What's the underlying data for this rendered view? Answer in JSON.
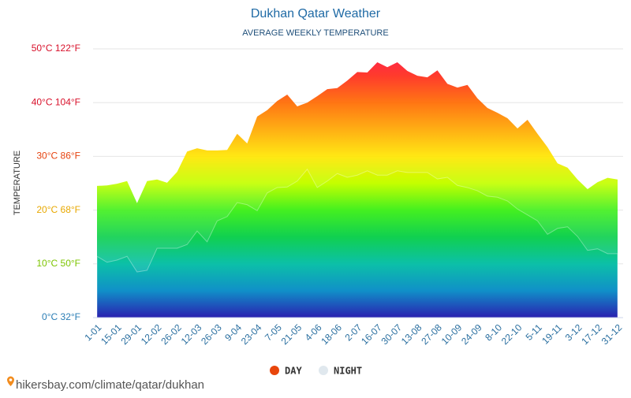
{
  "chart_data": {
    "type": "area",
    "title": "Dukhan Qatar Weather",
    "subtitle": "AVERAGE WEEKLY TEMPERATURE",
    "y_axis_label": "TEMPERATURE",
    "source": "hikersbay.com/climate/qatar/dukhan",
    "categories": [
      "1-01",
      null,
      "15-01",
      null,
      "29-01",
      null,
      "12-02",
      null,
      "26-02",
      null,
      "12-03",
      null,
      "26-03",
      null,
      "9-04",
      null,
      "23-04",
      null,
      "7-05",
      null,
      "21-05",
      null,
      "4-06",
      null,
      "18-06",
      null,
      "2-07",
      null,
      "16-07",
      null,
      "30-07",
      null,
      "13-08",
      null,
      "27-08",
      null,
      "10-09",
      null,
      "24-09",
      null,
      "8-10",
      null,
      "22-10",
      null,
      "5-11",
      null,
      "19-11",
      null,
      "3-12",
      null,
      "17-12",
      null,
      "31-12"
    ],
    "series": [
      {
        "name": "DAY",
        "color": "#e8460c",
        "values": [
          24.5,
          24.6,
          24.9,
          25.4,
          21.3,
          25.4,
          25.7,
          25.1,
          27.1,
          30.9,
          31.5,
          31.1,
          31.1,
          31.2,
          34.2,
          32.4,
          37.4,
          38.6,
          40.3,
          41.5,
          39.3,
          40.0,
          41.2,
          42.5,
          42.7,
          44.1,
          45.7,
          45.6,
          47.5,
          46.6,
          47.5,
          45.9,
          45.0,
          44.7,
          46.0,
          43.5,
          42.8,
          43.3,
          40.8,
          39.0,
          38.1,
          37.1,
          35.2,
          36.8,
          34.2,
          31.7,
          28.7,
          27.9,
          25.7,
          23.9,
          25.2,
          26.0,
          25.7
        ]
      },
      {
        "name": "NIGHT",
        "color": "#e0e8ee",
        "values": [
          11.4,
          10.3,
          10.7,
          11.4,
          8.5,
          8.8,
          12.9,
          12.9,
          12.9,
          13.6,
          16.1,
          14.1,
          18.0,
          18.8,
          21.4,
          21.0,
          19.9,
          23.2,
          24.2,
          24.3,
          25.4,
          27.6,
          24.2,
          25.4,
          26.8,
          26.1,
          26.5,
          27.3,
          26.5,
          26.5,
          27.3,
          27.0,
          27.0,
          27.0,
          25.8,
          26.1,
          24.6,
          24.2,
          23.6,
          22.6,
          22.4,
          21.7,
          20.2,
          19.1,
          18.0,
          15.5,
          16.6,
          16.9,
          15.1,
          12.5,
          12.8,
          11.9,
          11.9
        ]
      }
    ],
    "ylim": [
      0,
      50
    ],
    "yticks": [
      {
        "value": 0,
        "label": "0°C 32°F"
      },
      {
        "value": 10,
        "label": "10°C 50°F"
      },
      {
        "value": 20,
        "label": "20°C 68°F"
      },
      {
        "value": 30,
        "label": "30°C 86°F"
      },
      {
        "value": 40,
        "label": "40°C 104°F"
      },
      {
        "value": 50,
        "label": "50°C 122°F"
      }
    ],
    "ytick_colors": [
      "#2a7db5",
      "#7cc400",
      "#e8a800",
      "#e6430f",
      "#d8102a",
      "#d8102a"
    ],
    "grid": true,
    "legend": "bottom"
  }
}
